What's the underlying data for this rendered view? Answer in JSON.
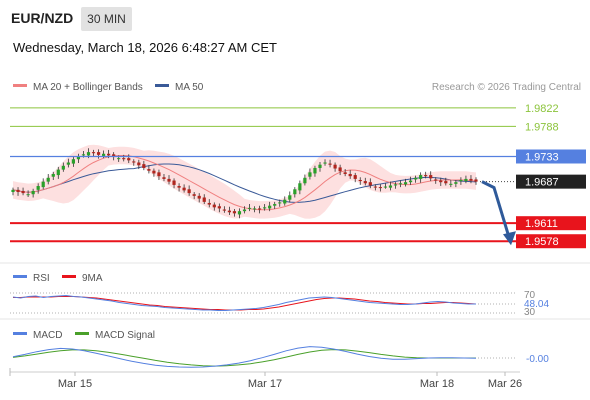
{
  "header": {
    "pair": "EUR/NZD",
    "timeframe": "30 MIN",
    "datetime": "Wednesday, March 18, 2026 6:48:27 AM CET"
  },
  "legend": {
    "ma20": "MA 20 + Bollinger Bands",
    "ma50": "MA 50",
    "copyright": "Research © 2026 Trading Central"
  },
  "colors": {
    "resistance": "#8cc43c",
    "pivot": "#5580e0",
    "support": "#e8141c",
    "current": "#222222",
    "bull": "#2aa02a",
    "bear": "#b0251e",
    "ma20": "#f08080",
    "ma50": "#3a5a98",
    "band_fill": "#fde0e0",
    "arrow": "#2f5a9a"
  },
  "chart_data": [
    {
      "type": "line",
      "title": "EUR/NZD 30 MIN",
      "x_ticks": [
        "Mar 15",
        "Mar 17",
        "Mar 18",
        "Mar 26"
      ],
      "ylim": [
        1.954,
        1.984
      ],
      "grid": false,
      "levels": [
        {
          "name": "resistance-2",
          "value": 1.9822,
          "label": "1.9822"
        },
        {
          "name": "resistance-1",
          "value": 1.9788,
          "label": "1.9788"
        },
        {
          "name": "pivot",
          "value": 1.9733,
          "label": "1.9733"
        },
        {
          "name": "current",
          "value": 1.9687,
          "label": "1.9687"
        },
        {
          "name": "support-1",
          "value": 1.9611,
          "label": "1.9611"
        },
        {
          "name": "support-2",
          "value": 1.9578,
          "label": "1.9578"
        }
      ],
      "close": [
        1.9672,
        1.9668,
        1.9666,
        1.9664,
        1.967,
        1.9679,
        1.9687,
        1.9694,
        1.9701,
        1.9709,
        1.9716,
        1.9722,
        1.9728,
        1.9733,
        1.9737,
        1.9741,
        1.9739,
        1.9736,
        1.9738,
        1.9735,
        1.9732,
        1.973,
        1.9728,
        1.9726,
        1.9722,
        1.9717,
        1.9712,
        1.9707,
        1.9702,
        1.9697,
        1.9692,
        1.9687,
        1.9681,
        1.9676,
        1.9671,
        1.9666,
        1.9661,
        1.9656,
        1.965,
        1.9645,
        1.964,
        1.9638,
        1.9634,
        1.9631,
        1.9629,
        1.9633,
        1.9636,
        1.9639,
        1.9638,
        1.9636,
        1.964,
        1.9643,
        1.9646,
        1.9649,
        1.9654,
        1.9662,
        1.9673,
        1.9684,
        1.9694,
        1.9704,
        1.9712,
        1.9718,
        1.9722,
        1.9718,
        1.9711,
        1.9706,
        1.9701,
        1.9697,
        1.9692,
        1.9688,
        1.9684,
        1.968,
        1.9677,
        1.9676,
        1.9678,
        1.968,
        1.9682,
        1.9684,
        1.9686,
        1.9689,
        1.9694,
        1.9699,
        1.9697,
        1.9693,
        1.9689,
        1.9686,
        1.9684,
        1.9683,
        1.9686,
        1.969,
        1.9692,
        1.9689,
        1.9687
      ],
      "ma20": [
        1.9685,
        1.969,
        1.9696,
        1.9702,
        1.9708,
        1.9712,
        1.9716,
        1.9719,
        1.9721,
        1.9723,
        1.9724,
        1.9724,
        1.9724,
        1.9723,
        1.9722,
        1.972,
        1.9718,
        1.9715,
        1.9711,
        1.9707,
        1.9702,
        1.9697,
        1.9692,
        1.9687,
        1.9682,
        1.9677,
        1.9672,
        1.9667,
        1.9662,
        1.9658,
        1.9654,
        1.965,
        1.9646,
        1.9643,
        1.964,
        1.9638,
        1.9637,
        1.9636,
        1.9636,
        1.9637,
        1.9639,
        1.9641,
        1.9644,
        1.9648,
        1.9652,
        1.9656,
        1.966,
        1.9665,
        1.967,
        1.9675,
        1.968,
        1.9685,
        1.969,
        1.9694,
        1.9698,
        1.97,
        1.9702,
        1.9702,
        1.9701,
        1.97,
        1.9698,
        1.9696,
        1.9694,
        1.9692,
        1.969,
        1.9689,
        1.9688,
        1.9688,
        1.9688,
        1.9689,
        1.969,
        1.969,
        1.969,
        1.969,
        1.969
      ],
      "ma20_start": 18,
      "ma50_note": "MA 50 series",
      "ma50": [
        1.969,
        1.9694,
        1.9698,
        1.9701,
        1.9703,
        1.9704,
        1.9705,
        1.9705,
        1.9704,
        1.9703,
        1.9701,
        1.9699,
        1.9696,
        1.9693,
        1.969,
        1.9686,
        1.9683,
        1.9679,
        1.9676,
        1.9672,
        1.9669,
        1.9666,
        1.9663,
        1.966,
        1.9658,
        1.9656,
        1.9655,
        1.9654,
        1.9654,
        1.9655,
        1.9656,
        1.9658,
        1.966,
        1.9662,
        1.9665,
        1.9668,
        1.9671,
        1.9674,
        1.9676,
        1.9679,
        1.9681,
        1.9682,
        1.9683,
        1.9684,
        1.9684,
        1.9685,
        1.9686
      ],
      "ma50_start": 46
    },
    {
      "type": "line",
      "title": "RSI",
      "series": [
        {
          "name": "RSI"
        },
        {
          "name": "9MA"
        }
      ],
      "ylim": [
        30,
        70
      ],
      "reference_lines": [
        70,
        30
      ],
      "current_value": "48.04",
      "rsi": [
        62,
        60,
        63,
        64,
        61,
        63,
        64,
        65,
        63,
        62,
        60,
        58,
        56,
        54,
        51,
        49,
        47,
        45,
        44,
        43,
        41,
        40,
        39,
        38,
        37,
        36,
        36,
        35,
        35,
        36,
        37,
        38,
        39,
        41,
        44,
        47,
        51,
        54,
        57,
        60,
        61,
        62,
        61,
        59,
        57,
        55,
        53,
        51,
        50,
        49,
        48,
        47,
        47,
        48,
        50,
        52,
        53,
        52,
        50,
        49,
        48,
        48
      ],
      "ma9": [
        61,
        61,
        62,
        62,
        62,
        62,
        63,
        63,
        63,
        62,
        61,
        60,
        58,
        56,
        54,
        52,
        50,
        48,
        46,
        45,
        43,
        42,
        41,
        40,
        39,
        38,
        37,
        37,
        36,
        36,
        36,
        37,
        37,
        38,
        40,
        42,
        45,
        48,
        51,
        54,
        57,
        59,
        60,
        60,
        59,
        58,
        56,
        54,
        53,
        51,
        50,
        49,
        48,
        48,
        49,
        49,
        50,
        51,
        51,
        50,
        49,
        48
      ]
    },
    {
      "type": "line",
      "title": "MACD",
      "series": [
        {
          "name": "MACD"
        },
        {
          "name": "MACD Signal"
        }
      ],
      "current_value": "-0.00",
      "macd": [
        0.4,
        1.2,
        2.1,
        2.8,
        3.2,
        3.0,
        2.4,
        1.6,
        0.7,
        -0.2,
        -1.1,
        -1.8,
        -2.4,
        -2.8,
        -3.0,
        -3.1,
        -3.0,
        -2.7,
        -2.3,
        -1.7,
        -0.9,
        0.1,
        1.2,
        2.4,
        3.3,
        3.8,
        3.6,
        3.0,
        2.2,
        1.3,
        0.5,
        -0.1,
        -0.4,
        -0.4,
        -0.2,
        0.0,
        0.1,
        0.1,
        0.0,
        -0.1
      ],
      "signal": [
        0.2,
        0.7,
        1.3,
        1.9,
        2.4,
        2.7,
        2.7,
        2.4,
        1.9,
        1.3,
        0.6,
        -0.1,
        -0.8,
        -1.4,
        -1.9,
        -2.3,
        -2.6,
        -2.7,
        -2.6,
        -2.3,
        -1.9,
        -1.3,
        -0.6,
        0.3,
        1.2,
        2.0,
        2.6,
        2.8,
        2.7,
        2.3,
        1.8,
        1.2,
        0.7,
        0.3,
        0.1,
        0.0,
        0.0,
        0.0,
        0.0,
        0.0
      ]
    }
  ],
  "indicators": {
    "rsi_label": "RSI",
    "rsi_ma_label": "9MA",
    "rsi_level_high": "70",
    "rsi_level_low": "30",
    "macd_label": "MACD",
    "macd_signal_label": "MACD Signal"
  },
  "x_axis": [
    "Mar 15",
    "Mar 17",
    "Mar 18",
    "Mar 26"
  ]
}
